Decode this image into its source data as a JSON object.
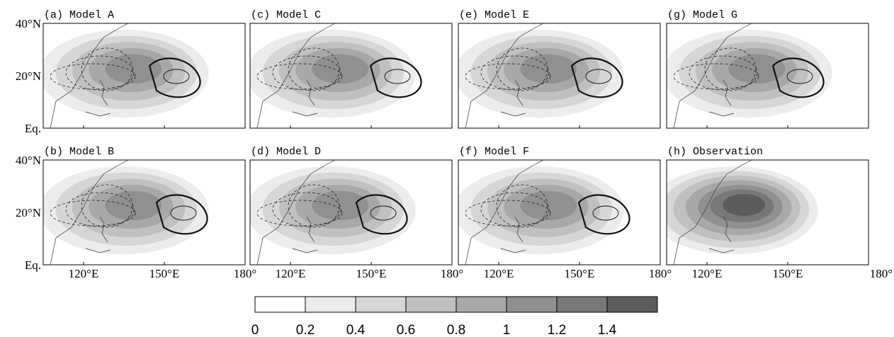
{
  "panels": [
    {
      "title": "(a) Model A"
    },
    {
      "title": "(b) Model B"
    },
    {
      "title": "(c) Model C"
    },
    {
      "title": "(d) Model D"
    },
    {
      "title": "(e) Model E"
    },
    {
      "title": "(f) Model F"
    },
    {
      "title": "(g) Model G"
    },
    {
      "title": "(h) Observation"
    }
  ],
  "y_labels": [
    "40°N",
    "20°N",
    "Eq."
  ],
  "x_labels": [
    "120°E",
    "150°E",
    "180°"
  ],
  "colorbar": {
    "ticks": [
      0,
      0.2,
      0.4,
      0.6,
      0.8,
      1,
      1.2,
      1.4
    ],
    "colors": [
      "#ffffff",
      "#ececec",
      "#d6d6d6",
      "#c0c0c0",
      "#a8a8a8",
      "#909090",
      "#787878",
      "#5c5c5c"
    ]
  }
}
